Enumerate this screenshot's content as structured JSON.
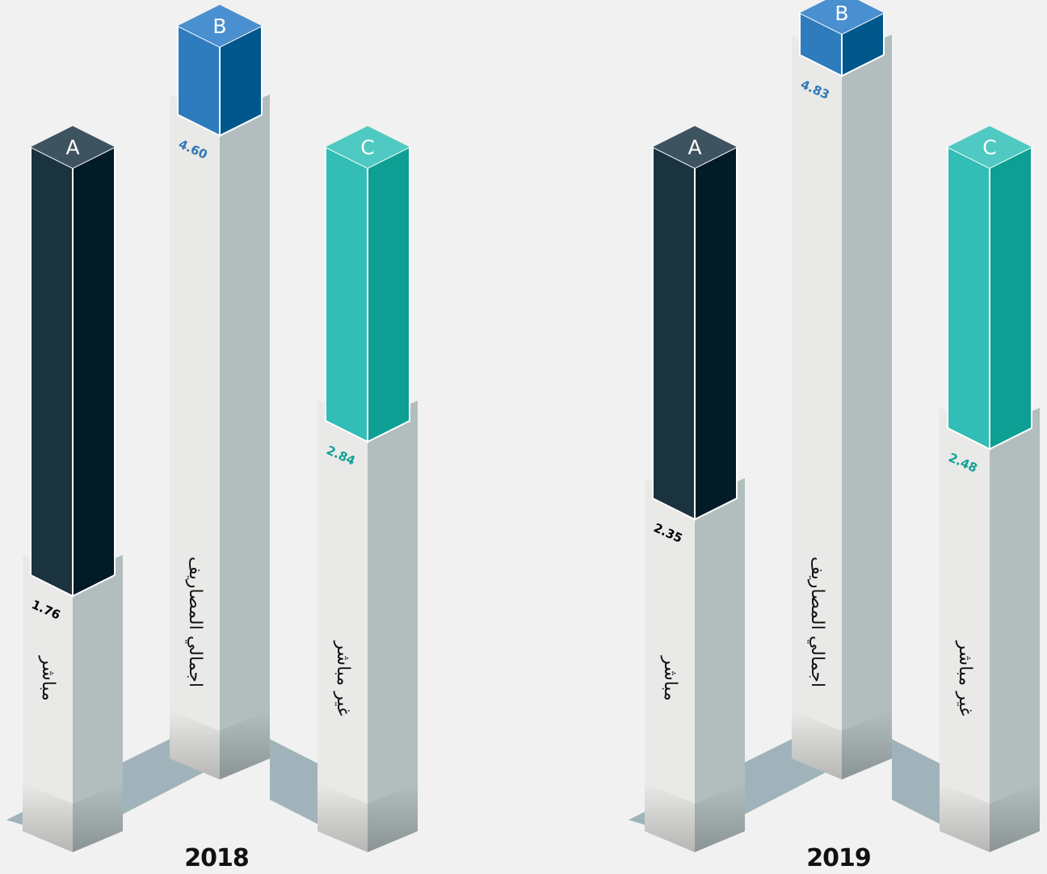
{
  "chart_data": {
    "type": "bar",
    "groups": [
      {
        "label": "2018",
        "bars": [
          {
            "letter": "A",
            "value": 1.76,
            "value_label": "1.76",
            "category": "مباشر"
          },
          {
            "letter": "B",
            "value": 4.6,
            "value_label": "4.60",
            "category": "اجمالي المصاريف"
          },
          {
            "letter": "C",
            "value": 2.84,
            "value_label": "2.84",
            "category": "غير مباشر"
          }
        ]
      },
      {
        "label": "2019",
        "bars": [
          {
            "letter": "A",
            "value": 2.35,
            "value_label": "2.35",
            "category": "مباشر"
          },
          {
            "letter": "B",
            "value": 4.83,
            "value_label": "4.83",
            "category": "اجمالي المصاريف"
          },
          {
            "letter": "C",
            "value": 2.48,
            "value_label": "2.48",
            "category": "غير مباشر"
          }
        ]
      }
    ]
  },
  "colors": {
    "A": {
      "left": "#1b323f",
      "right": "#011b27",
      "top": "#3e5360",
      "label": "#000000"
    },
    "B": {
      "left": "#2e7bbd",
      "right": "#00578b",
      "top": "#4a8fd0",
      "label": "#2f78b8"
    },
    "C": {
      "left": "#33bdb7",
      "right": "#0d9f94",
      "top": "#4fc9c1",
      "label": "#10a096"
    },
    "column_left": "#e9e9e7",
    "column_right": "#b2bebe",
    "shadow": "#a0b3ba"
  }
}
